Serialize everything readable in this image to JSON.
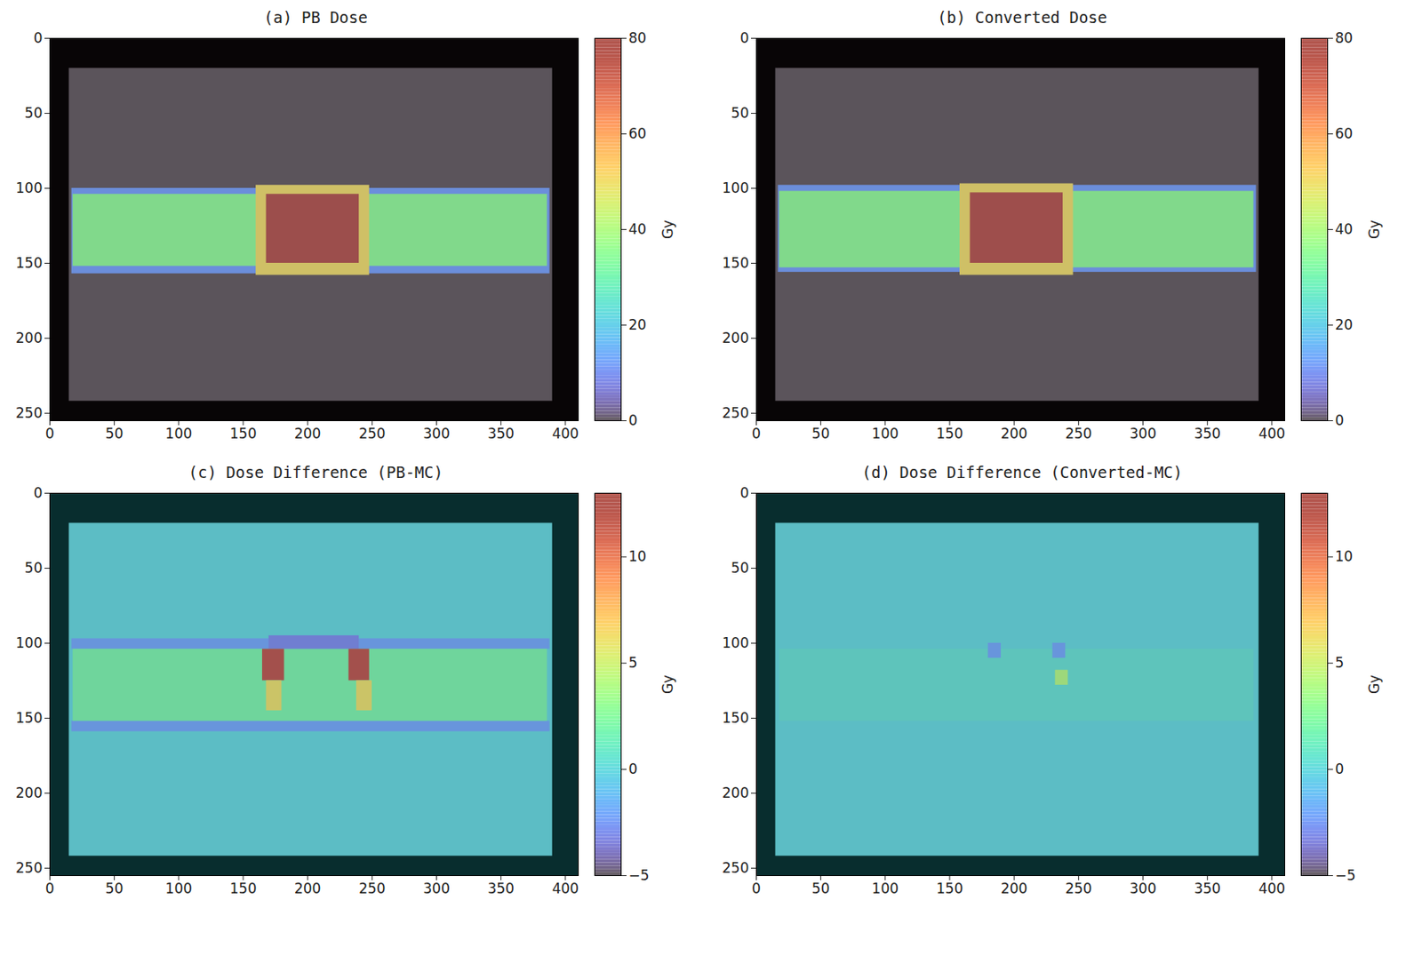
{
  "chart_data": [
    {
      "type": "heatmap",
      "title": "(a) PB Dose",
      "xlim": [
        0,
        410
      ],
      "ylim": [
        255,
        0
      ],
      "xticks": [
        0,
        50,
        100,
        150,
        200,
        250,
        300,
        350,
        400
      ],
      "yticks": [
        0,
        50,
        100,
        150,
        200,
        250
      ],
      "colorbar_range": [
        0,
        80
      ],
      "colorbar_ticks": [
        0,
        20,
        40,
        60,
        80
      ],
      "colorbar_label": "Gy",
      "regions": [
        {
          "x": [
            15,
            390
          ],
          "y": [
            20,
            242
          ],
          "value": 0
        },
        {
          "x": [
            17,
            388
          ],
          "y": [
            100,
            157
          ],
          "value": 12
        },
        {
          "x": [
            18,
            386
          ],
          "y": [
            104,
            152
          ],
          "value": 35
        },
        {
          "x": [
            160,
            248
          ],
          "y": [
            98,
            158
          ],
          "value": 50
        },
        {
          "x": [
            168,
            240
          ],
          "y": [
            104,
            150
          ],
          "value": 78
        }
      ]
    },
    {
      "type": "heatmap",
      "title": "(b) Converted Dose",
      "xlim": [
        0,
        410
      ],
      "ylim": [
        255,
        0
      ],
      "xticks": [
        0,
        50,
        100,
        150,
        200,
        250,
        300,
        350,
        400
      ],
      "yticks": [
        0,
        50,
        100,
        150,
        200,
        250
      ],
      "colorbar_range": [
        0,
        80
      ],
      "colorbar_ticks": [
        0,
        20,
        40,
        60,
        80
      ],
      "colorbar_label": "Gy",
      "regions": [
        {
          "x": [
            15,
            390
          ],
          "y": [
            20,
            242
          ],
          "value": 0
        },
        {
          "x": [
            17,
            388
          ],
          "y": [
            98,
            156
          ],
          "value": 12
        },
        {
          "x": [
            18,
            386
          ],
          "y": [
            102,
            153
          ],
          "value": 35
        },
        {
          "x": [
            158,
            246
          ],
          "y": [
            97,
            158
          ],
          "value": 50
        },
        {
          "x": [
            166,
            238
          ],
          "y": [
            103,
            150
          ],
          "value": 77
        }
      ]
    },
    {
      "type": "heatmap",
      "title": "(c) Dose Difference (PB-MC)",
      "xlim": [
        0,
        410
      ],
      "ylim": [
        255,
        0
      ],
      "xticks": [
        0,
        50,
        100,
        150,
        200,
        250,
        300,
        350,
        400
      ],
      "yticks": [
        0,
        50,
        100,
        150,
        200,
        250
      ],
      "colorbar_range": [
        -5,
        13
      ],
      "colorbar_ticks": [
        -5,
        0,
        5,
        10
      ],
      "colorbar_label": "Gy",
      "regions": [
        {
          "x": [
            15,
            390
          ],
          "y": [
            20,
            242
          ],
          "value": 0
        },
        {
          "x": [
            17,
            388
          ],
          "y": [
            97,
            104
          ],
          "value": -2
        },
        {
          "x": [
            17,
            388
          ],
          "y": [
            152,
            159
          ],
          "value": -2
        },
        {
          "x": [
            18,
            386
          ],
          "y": [
            104,
            152
          ],
          "value": 2
        },
        {
          "x": [
            170,
            240
          ],
          "y": [
            95,
            104
          ],
          "value": -3
        },
        {
          "x": [
            165,
            182
          ],
          "y": [
            104,
            125
          ],
          "value": 12
        },
        {
          "x": [
            232,
            248
          ],
          "y": [
            104,
            125
          ],
          "value": 12
        },
        {
          "x": [
            168,
            180
          ],
          "y": [
            125,
            145
          ],
          "value": 6
        },
        {
          "x": [
            238,
            250
          ],
          "y": [
            125,
            145
          ],
          "value": 6
        }
      ]
    },
    {
      "type": "heatmap",
      "title": "(d) Dose Difference (Converted-MC)",
      "xlim": [
        0,
        410
      ],
      "ylim": [
        255,
        0
      ],
      "xticks": [
        0,
        50,
        100,
        150,
        200,
        250,
        300,
        350,
        400
      ],
      "yticks": [
        0,
        50,
        100,
        150,
        200,
        250
      ],
      "colorbar_range": [
        -5,
        13
      ],
      "colorbar_ticks": [
        -5,
        0,
        5,
        10
      ],
      "colorbar_label": "Gy",
      "regions": [
        {
          "x": [
            15,
            390
          ],
          "y": [
            20,
            242
          ],
          "value": 0
        },
        {
          "x": [
            18,
            386
          ],
          "y": [
            104,
            152
          ],
          "value": 0.5
        },
        {
          "x": [
            180,
            190
          ],
          "y": [
            100,
            110
          ],
          "value": -2
        },
        {
          "x": [
            230,
            240
          ],
          "y": [
            100,
            110
          ],
          "value": -2
        },
        {
          "x": [
            232,
            242
          ],
          "y": [
            118,
            128
          ],
          "value": 4
        }
      ]
    }
  ]
}
